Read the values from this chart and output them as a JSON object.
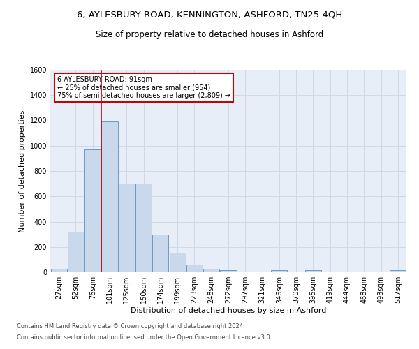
{
  "title": "6, AYLESBURY ROAD, KENNINGTON, ASHFORD, TN25 4QH",
  "subtitle": "Size of property relative to detached houses in Ashford",
  "xlabel": "Distribution of detached houses by size in Ashford",
  "ylabel": "Number of detached properties",
  "categories": [
    "27sqm",
    "52sqm",
    "76sqm",
    "101sqm",
    "125sqm",
    "150sqm",
    "174sqm",
    "199sqm",
    "223sqm",
    "248sqm",
    "272sqm",
    "297sqm",
    "321sqm",
    "346sqm",
    "370sqm",
    "395sqm",
    "419sqm",
    "444sqm",
    "468sqm",
    "493sqm",
    "517sqm"
  ],
  "values": [
    25,
    320,
    970,
    1190,
    700,
    700,
    300,
    155,
    60,
    25,
    15,
    0,
    0,
    15,
    0,
    15,
    0,
    0,
    0,
    0,
    15
  ],
  "bar_color": "#c9d9eb",
  "bar_edge_color": "#5a8fc0",
  "vline_color": "#cc0000",
  "annotation_text": "6 AYLESBURY ROAD: 91sqm\n← 25% of detached houses are smaller (954)\n75% of semi-detached houses are larger (2,809) →",
  "annotation_box_color": "#ffffff",
  "annotation_box_edge_color": "#cc0000",
  "ylim": [
    0,
    1600
  ],
  "yticks": [
    0,
    200,
    400,
    600,
    800,
    1000,
    1200,
    1400,
    1600
  ],
  "grid_color": "#d0d8e8",
  "bg_color": "#e8eef8",
  "footer1": "Contains HM Land Registry data © Crown copyright and database right 2024.",
  "footer2": "Contains public sector information licensed under the Open Government Licence v3.0.",
  "title_fontsize": 9.5,
  "subtitle_fontsize": 8.5,
  "label_fontsize": 8,
  "tick_fontsize": 7,
  "footer_fontsize": 6
}
